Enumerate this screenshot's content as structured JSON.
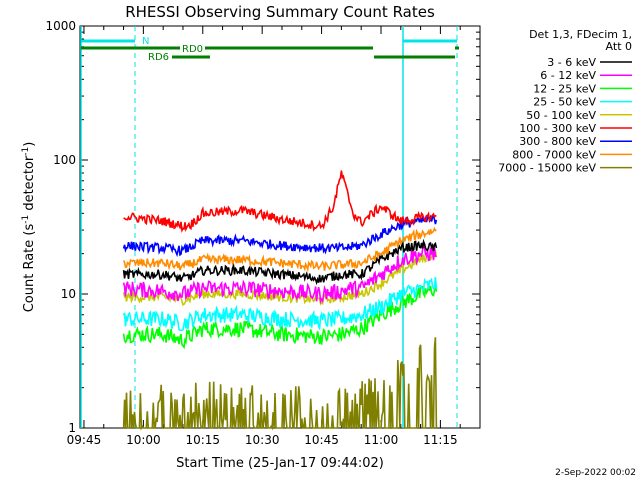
{
  "chart_data": {
    "type": "line",
    "title": "RHESSI Observing Summary Count Rates",
    "xlabel": "Start Time (25-Jan-17 09:44:02)",
    "ylabel_parts": [
      "Count Rate (s",
      "-1",
      " detector",
      "-1",
      ")"
    ],
    "yscale": "log",
    "ylim": [
      1,
      1000
    ],
    "xlim": [
      "09:44",
      "11:25"
    ],
    "x_ticks": [
      "09:45",
      "10:00",
      "10:15",
      "10:30",
      "10:45",
      "11:00",
      "11:15"
    ],
    "y_ticks": [
      "1",
      "10",
      "100",
      "1000"
    ],
    "grid": false,
    "legend": {
      "placement": "top-right outside",
      "header": [
        "Det 1,3, FDecim 1,",
        "Att 0"
      ]
    },
    "timestamp": "2-Sep-2022 00:02",
    "flags": [
      {
        "label": "N",
        "color": "#00e5e5"
      },
      {
        "label": "RD0",
        "color": "#007f00"
      },
      {
        "label": "RD6",
        "color": "#007f00"
      }
    ],
    "data_window": [
      "09:56",
      "11:14"
    ],
    "series": [
      {
        "name": "3 - 6 keV",
        "color": "#000000",
        "x": [
          "09:55",
          "10:05",
          "10:10",
          "10:13",
          "10:15",
          "10:25",
          "10:35",
          "10:45",
          "10:50",
          "10:55",
          "11:00",
          "11:05",
          "11:10",
          "11:14"
        ],
        "y": [
          14,
          14,
          13,
          14,
          15,
          15,
          14,
          13,
          14,
          14,
          18,
          22,
          23,
          22
        ]
      },
      {
        "name": "6 - 12 keV",
        "color": "#ff00ff",
        "x": [
          "09:55",
          "10:05",
          "10:10",
          "10:15",
          "10:25",
          "10:35",
          "10:45",
          "10:50",
          "10:52",
          "10:55",
          "11:00",
          "11:05",
          "11:10",
          "11:14"
        ],
        "y": [
          11,
          10.5,
          10,
          11,
          11,
          10.5,
          10,
          10.5,
          11,
          11,
          14,
          18,
          20,
          20
        ]
      },
      {
        "name": "12 - 25 keV",
        "color": "#00ff00",
        "x": [
          "09:55",
          "10:05",
          "10:10",
          "10:15",
          "10:25",
          "10:35",
          "10:45",
          "10:50",
          "10:55",
          "11:00",
          "11:05",
          "11:10",
          "11:14"
        ],
        "y": [
          5,
          5,
          4.5,
          5.5,
          5.5,
          5,
          4.8,
          5,
          5.5,
          7,
          8.5,
          10,
          11
        ]
      },
      {
        "name": "25 - 50 keV",
        "color": "#00ffff",
        "x": [
          "09:55",
          "10:05",
          "10:10",
          "10:15",
          "10:25",
          "10:35",
          "10:45",
          "10:50",
          "10:55",
          "11:00",
          "11:05",
          "11:10",
          "11:14"
        ],
        "y": [
          6.5,
          6.5,
          6,
          7,
          7,
          6.5,
          6.3,
          6.5,
          7,
          8,
          10,
          11,
          12
        ]
      },
      {
        "name": "50 - 100 keV",
        "color": "#c8c800",
        "x": [
          "09:55",
          "10:05",
          "10:10",
          "10:15",
          "10:25",
          "10:35",
          "10:45",
          "10:50",
          "10:55",
          "11:00",
          "11:05",
          "11:10",
          "11:14"
        ],
        "y": [
          9.5,
          9.5,
          9,
          10,
          10,
          9.5,
          9,
          9.5,
          10,
          12,
          15,
          18,
          20
        ]
      },
      {
        "name": "100 - 300 keV",
        "color": "#ff0000",
        "x": [
          "09:55",
          "10:05",
          "10:10",
          "10:12",
          "10:15",
          "10:25",
          "10:35",
          "10:45",
          "10:48",
          "10:50",
          "10:53",
          "10:55",
          "11:00",
          "11:05",
          "11:10",
          "11:14"
        ],
        "y": [
          38,
          35,
          32,
          33,
          40,
          42,
          36,
          32,
          45,
          80,
          40,
          34,
          45,
          35,
          37,
          38
        ]
      },
      {
        "name": "300 - 800 keV",
        "color": "#0000ff",
        "x": [
          "09:55",
          "10:05",
          "10:10",
          "10:15",
          "10:25",
          "10:35",
          "10:45",
          "10:50",
          "10:55",
          "11:00",
          "11:05",
          "11:10",
          "11:14"
        ],
        "y": [
          23,
          22,
          21,
          25,
          25,
          23,
          22,
          22,
          23,
          28,
          33,
          35,
          36
        ]
      },
      {
        "name": "800 - 7000 keV",
        "color": "#ff8c00",
        "x": [
          "09:55",
          "10:05",
          "10:10",
          "10:15",
          "10:25",
          "10:35",
          "10:45",
          "10:50",
          "10:55",
          "11:00",
          "11:05",
          "11:10",
          "11:14"
        ],
        "y": [
          17,
          17,
          16,
          18,
          18,
          17,
          16,
          16.5,
          17,
          20,
          25,
          28,
          30
        ]
      },
      {
        "name": "7000 - 15000 keV",
        "color": "#808000",
        "x": [
          "09:55",
          "10:05",
          "10:10",
          "10:15",
          "10:25",
          "10:35",
          "10:45",
          "10:55",
          "11:00",
          "11:05",
          "11:10",
          "11:14"
        ],
        "y": [
          1.2,
          1.2,
          1.2,
          1.3,
          1.2,
          1.2,
          1.2,
          1.3,
          1.5,
          2,
          2.5,
          3
        ]
      }
    ]
  }
}
